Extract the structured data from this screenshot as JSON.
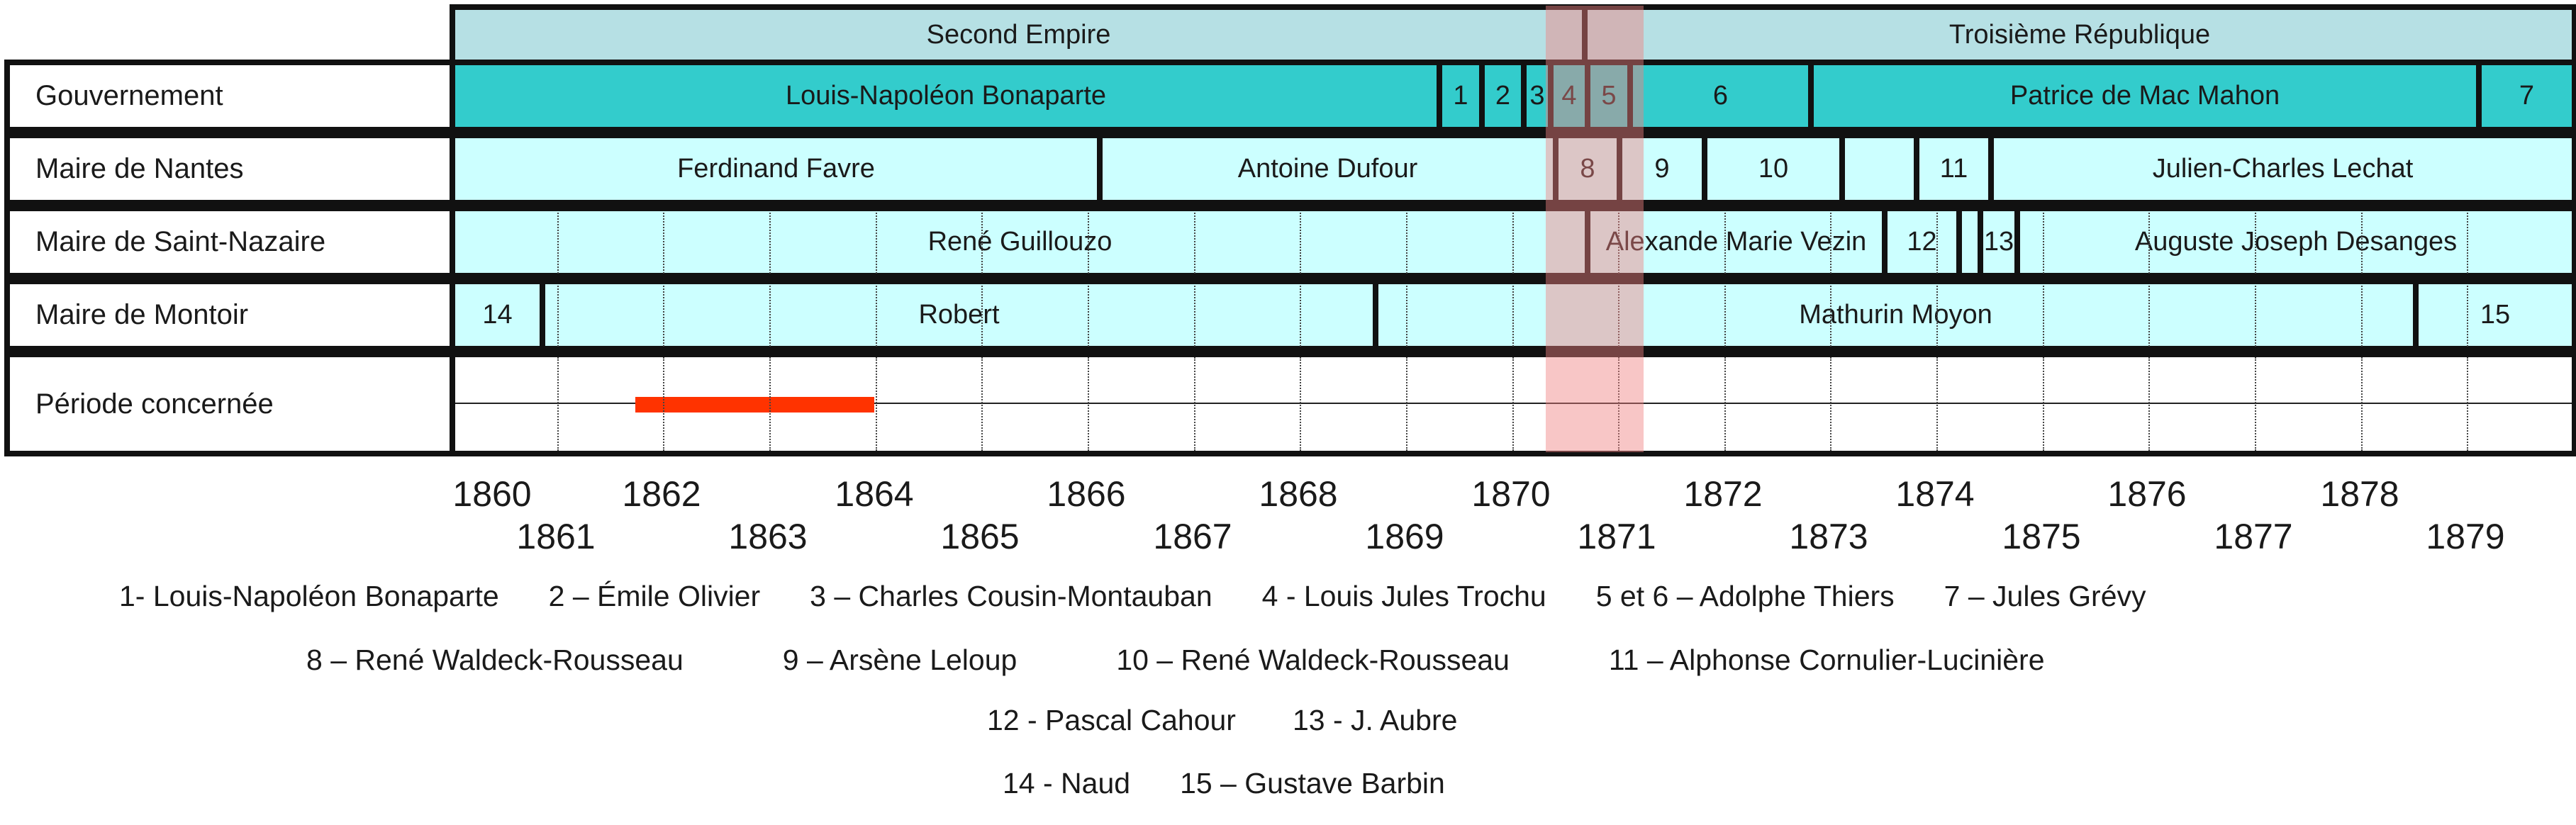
{
  "rows": {
    "gouvernement": "Gouvernement",
    "nantes": "Maire de Nantes",
    "saint_nazaire": "Maire de Saint-Nazaire",
    "montoir": "Maire de Montoir",
    "periode": "Période concernée"
  },
  "regime": [
    {
      "label": "Second Empire",
      "start": 1860,
      "end": 1870.67
    },
    {
      "label": "Troisième République",
      "start": 1870.67,
      "end": 1880
    }
  ],
  "gouvernement": [
    {
      "label": "Louis-Napoléon Bonaparte",
      "start": 1860,
      "end": 1869.3
    },
    {
      "label": "1",
      "start": 1869.3,
      "end": 1869.7
    },
    {
      "label": "2",
      "start": 1869.7,
      "end": 1870.1
    },
    {
      "label": "3",
      "start": 1870.1,
      "end": 1870.35
    },
    {
      "label": "4",
      "start": 1870.35,
      "end": 1870.7
    },
    {
      "label": "5",
      "start": 1870.7,
      "end": 1871.1
    },
    {
      "label": "6",
      "start": 1871.1,
      "end": 1872.8
    },
    {
      "label": "Patrice de Mac Mahon",
      "start": 1872.8,
      "end": 1879.1
    },
    {
      "label": "7",
      "start": 1879.1,
      "end": 1880
    }
  ],
  "nantes": [
    {
      "label": "Ferdinand Favre",
      "start": 1860,
      "end": 1866.1
    },
    {
      "label": "Antoine Dufour",
      "start": 1866.1,
      "end": 1870.4
    },
    {
      "label": "8",
      "start": 1870.4,
      "end": 1871.0
    },
    {
      "label": "9",
      "start": 1871.0,
      "end": 1871.8
    },
    {
      "label": "10",
      "start": 1871.8,
      "end": 1873.1
    },
    {
      "label": "",
      "start": 1873.1,
      "end": 1873.8
    },
    {
      "label": "11",
      "start": 1873.8,
      "end": 1874.5
    },
    {
      "label": "Julien-Charles Lechat",
      "start": 1874.5,
      "end": 1880
    }
  ],
  "saint_nazaire": [
    {
      "label": "René Guillouzo",
      "start": 1860,
      "end": 1870.7
    },
    {
      "label": "Alexande Marie Vezin",
      "start": 1870.7,
      "end": 1873.5
    },
    {
      "label": "12",
      "start": 1873.5,
      "end": 1874.2
    },
    {
      "label": "",
      "start": 1874.2,
      "end": 1874.4
    },
    {
      "label": "13",
      "start": 1874.4,
      "end": 1874.75
    },
    {
      "label": "Auguste Joseph Desanges",
      "start": 1874.75,
      "end": 1880
    }
  ],
  "montoir": [
    {
      "label": "14",
      "start": 1860,
      "end": 1860.85
    },
    {
      "label": "Robert",
      "start": 1860.85,
      "end": 1868.7
    },
    {
      "label": "Mathurin Moyon",
      "start": 1868.7,
      "end": 1878.5
    },
    {
      "label": "15",
      "start": 1878.5,
      "end": 1880
    }
  ],
  "highlight": {
    "start": 1870.33,
    "end": 1871.25,
    "color": "#f08080"
  },
  "periode": {
    "start": 1861.75,
    "end": 1864,
    "color": "#ff3300"
  },
  "years": [
    "1860",
    "1861",
    "1862",
    "1863",
    "1864",
    "1865",
    "1866",
    "1867",
    "1868",
    "1869",
    "1870",
    "1871",
    "1872",
    "1873",
    "1874",
    "1875",
    "1876",
    "1877",
    "1878",
    "1879"
  ],
  "legend": [
    [
      "1- Louis-Napoléon Bonaparte",
      "2 – Émile Olivier",
      "3 – Charles Cousin-Montauban",
      "4 - Louis Jules Trochu",
      "5 et 6 – Adolphe Thiers",
      "7 – Jules Grévy"
    ],
    [
      "8 – René Waldeck-Rousseau",
      "9 – Arsène Leloup",
      "10 – René Waldeck-Rousseau",
      "11 – Alphonse Cornulier-Lucinière"
    ],
    [
      "12 - Pascal Cahour",
      "13 - J. Aubre"
    ],
    [
      "14 - Naud",
      "15 – Gustave Barbin"
    ]
  ],
  "colors": {
    "regime": "#b6e0e4",
    "gouvernement": "#33cccc",
    "mayor": "#ccffff",
    "periode_bg": "#ffffff",
    "border": "#111111"
  }
}
